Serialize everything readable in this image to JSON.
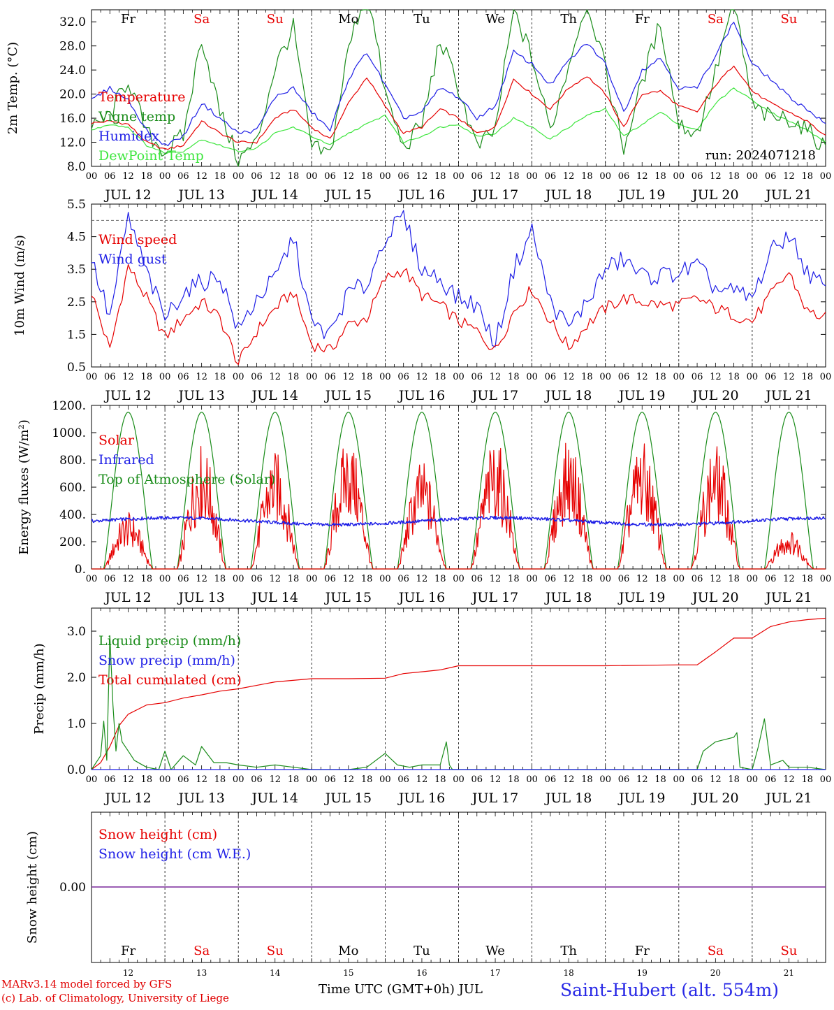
{
  "colors": {
    "red": "#e60000",
    "green": "#1a8c1a",
    "lightgreen": "#3ee63e",
    "blue": "#1e1ee6",
    "purple": "#7a2a9c",
    "weekday": "#000000",
    "weekend": "#e60000"
  },
  "chart_data": [
    {
      "type": "line",
      "ylabel": "2m Temp. (°C)",
      "ylim": [
        8.0,
        34.0
      ],
      "yticks": [
        "8.0",
        "12.0",
        "16.0",
        "20.0",
        "24.0",
        "28.0",
        "32.0"
      ],
      "x_unit": "hours since 00 UTC JUL 12",
      "xlim": [
        0,
        240
      ],
      "annotation": "run: 2024071218",
      "legend": [
        "Temperature",
        "Vigne temp",
        "Humidex",
        "DewPoint Temp"
      ],
      "series": [
        {
          "name": "Temperature",
          "color": "#e60000",
          "x": [
            0,
            6,
            12,
            18,
            24,
            30,
            36,
            42,
            48,
            54,
            60,
            66,
            72,
            78,
            84,
            90,
            96,
            102,
            108,
            114,
            120,
            126,
            132,
            138,
            144,
            150,
            156,
            162,
            168,
            174,
            180,
            186,
            192,
            198,
            204,
            210,
            216,
            222,
            228,
            234,
            240
          ],
          "y": [
            15.2,
            15.5,
            15.0,
            12.0,
            10.8,
            11.5,
            15.5,
            13.5,
            12.0,
            12.0,
            16.0,
            17.5,
            14.5,
            12.5,
            18.5,
            22.8,
            18.0,
            13.5,
            14.5,
            17.5,
            16.0,
            13.5,
            14.5,
            22.5,
            20.0,
            17.5,
            21.0,
            23.0,
            20.0,
            14.5,
            20.0,
            20.5,
            18.0,
            17.0,
            21.5,
            24.8,
            20.5,
            18.5,
            17.0,
            15.5,
            13.0
          ]
        },
        {
          "name": "Vigne temp",
          "color": "#1a8c1a",
          "x": [
            0,
            6,
            12,
            18,
            24,
            30,
            36,
            42,
            48,
            54,
            60,
            66,
            72,
            78,
            84,
            90,
            96,
            102,
            108,
            114,
            120,
            126,
            132,
            138,
            144,
            150,
            156,
            162,
            168,
            174,
            180,
            186,
            192,
            198,
            204,
            210,
            216,
            222,
            228,
            234,
            240
          ],
          "y": [
            14.0,
            16.5,
            22.5,
            13.5,
            10.5,
            13.0,
            29.5,
            17.0,
            9.0,
            12.0,
            24.5,
            31.0,
            11.0,
            10.0,
            27.5,
            38.0,
            20.0,
            11.0,
            15.0,
            29.0,
            21.0,
            11.0,
            14.0,
            34.0,
            26.0,
            14.0,
            25.0,
            36.0,
            24.0,
            11.0,
            22.0,
            32.0,
            15.0,
            13.5,
            23.5,
            36.0,
            18.0,
            16.0,
            16.0,
            14.0,
            11.0
          ]
        },
        {
          "name": "Humidex",
          "color": "#1e1ee6",
          "x": [
            0,
            6,
            12,
            18,
            24,
            30,
            36,
            42,
            48,
            54,
            60,
            66,
            72,
            78,
            84,
            90,
            96,
            102,
            108,
            114,
            120,
            126,
            132,
            138,
            144,
            150,
            156,
            162,
            168,
            174,
            180,
            186,
            192,
            198,
            204,
            210,
            216,
            222,
            228,
            234,
            240
          ],
          "y": [
            19.0,
            21.0,
            19.0,
            14.0,
            11.5,
            13.0,
            18.5,
            16.0,
            13.5,
            14.0,
            19.5,
            21.0,
            17.0,
            14.0,
            22.5,
            27.0,
            21.5,
            16.0,
            17.0,
            21.0,
            19.5,
            16.0,
            18.0,
            27.0,
            25.0,
            21.5,
            25.5,
            28.5,
            25.0,
            17.0,
            24.0,
            26.0,
            21.0,
            21.0,
            26.5,
            32.0,
            25.0,
            22.5,
            19.5,
            17.5,
            15.0
          ]
        },
        {
          "name": "DewPoint Temp",
          "color": "#3ee63e",
          "x": [
            0,
            6,
            12,
            18,
            24,
            30,
            36,
            42,
            48,
            54,
            60,
            66,
            72,
            78,
            84,
            90,
            96,
            102,
            108,
            114,
            120,
            126,
            132,
            138,
            144,
            150,
            156,
            162,
            168,
            174,
            180,
            186,
            192,
            198,
            204,
            210,
            216,
            222,
            228,
            234,
            240
          ],
          "y": [
            14.0,
            15.0,
            14.5,
            11.5,
            10.2,
            10.5,
            12.5,
            11.5,
            10.5,
            11.0,
            13.5,
            14.5,
            13.0,
            11.5,
            13.5,
            15.0,
            16.5,
            12.0,
            13.0,
            14.5,
            15.0,
            13.0,
            13.5,
            16.0,
            14.5,
            12.5,
            14.5,
            16.5,
            17.5,
            13.0,
            15.0,
            17.0,
            15.0,
            14.0,
            18.5,
            21.0,
            19.0,
            17.0,
            15.5,
            14.0,
            12.0
          ]
        }
      ]
    },
    {
      "type": "line",
      "ylabel": "10m Wind (m/s)",
      "ylim": [
        0.5,
        5.5
      ],
      "yticks": [
        "0.5",
        "1.5",
        "2.5",
        "3.5",
        "4.5",
        "5.5"
      ],
      "reference_line": 5.0,
      "xlim": [
        0,
        240
      ],
      "legend": [
        "Wind speed",
        "Wind gust"
      ],
      "series": [
        {
          "name": "Wind speed",
          "color": "#e60000",
          "x": [
            0,
            6,
            12,
            18,
            24,
            30,
            36,
            42,
            48,
            54,
            60,
            66,
            72,
            78,
            84,
            90,
            96,
            102,
            108,
            114,
            120,
            126,
            132,
            138,
            144,
            150,
            156,
            162,
            168,
            174,
            180,
            186,
            192,
            198,
            204,
            210,
            216,
            222,
            228,
            234,
            240
          ],
          "y": [
            2.8,
            1.0,
            3.6,
            2.6,
            1.4,
            2.0,
            2.5,
            2.0,
            0.6,
            1.6,
            2.3,
            2.8,
            1.2,
            1.0,
            1.8,
            2.0,
            3.2,
            3.5,
            2.7,
            2.4,
            1.9,
            1.6,
            1.0,
            2.2,
            2.9,
            1.9,
            1.1,
            1.8,
            2.3,
            2.6,
            2.5,
            2.4,
            2.4,
            2.6,
            2.3,
            2.1,
            1.9,
            2.7,
            3.4,
            2.2,
            2.0
          ]
        },
        {
          "name": "Wind gust",
          "color": "#1e1ee6",
          "x": [
            0,
            6,
            12,
            18,
            24,
            30,
            36,
            42,
            48,
            54,
            60,
            66,
            72,
            78,
            84,
            90,
            96,
            102,
            108,
            114,
            120,
            126,
            132,
            138,
            144,
            150,
            156,
            162,
            168,
            174,
            180,
            186,
            192,
            198,
            204,
            210,
            216,
            222,
            228,
            234,
            240
          ],
          "y": [
            3.8,
            2.0,
            5.1,
            3.4,
            2.0,
            2.8,
            3.1,
            3.3,
            1.6,
            2.6,
            3.2,
            4.5,
            1.8,
            1.5,
            2.8,
            3.0,
            4.5,
            5.1,
            3.5,
            3.2,
            2.6,
            2.4,
            1.2,
            3.5,
            4.7,
            2.5,
            1.7,
            2.5,
            3.5,
            3.8,
            3.3,
            3.3,
            3.4,
            3.6,
            2.9,
            2.8,
            2.6,
            4.0,
            4.6,
            3.4,
            2.9
          ]
        }
      ]
    },
    {
      "type": "line",
      "ylabel": "Energy fluxes (W/m²)",
      "ylim": [
        0,
        1200
      ],
      "yticks": [
        "0.",
        "200.",
        "400.",
        "600.",
        "800.",
        "1000.",
        "1200."
      ],
      "xlim": [
        0,
        240
      ],
      "legend": [
        "Solar",
        "Infrared",
        "Top of Atmosphere (Solar)"
      ],
      "toa_peak": 1150,
      "solar_peaks": [
        380,
        840,
        790,
        880,
        720,
        870,
        860,
        850,
        830,
        260
      ],
      "infrared_mean": 350,
      "series_names": [
        "Solar",
        "Infrared",
        "Top of Atmosphere (Solar)"
      ]
    },
    {
      "type": "line",
      "ylabel": "Precip (mm/h)",
      "ylim": [
        0,
        3.5
      ],
      "yticks": [
        "0.0",
        "1.0",
        "2.0",
        "3.0"
      ],
      "xlim": [
        0,
        240
      ],
      "legend": [
        "Liquid precip (mm/h)",
        "Snow precip (mm/h)",
        "Total cumulated (cm)"
      ],
      "series": [
        {
          "name": "Total cumulated (cm)",
          "color": "#e60000",
          "x": [
            0,
            3,
            6,
            9,
            12,
            18,
            24,
            30,
            36,
            42,
            48,
            60,
            72,
            84,
            96,
            102,
            108,
            114,
            120,
            144,
            168,
            192,
            198,
            204,
            210,
            216,
            222,
            228,
            234,
            240
          ],
          "y": [
            0,
            0.15,
            0.5,
            0.95,
            1.2,
            1.4,
            1.45,
            1.55,
            1.62,
            1.7,
            1.75,
            1.9,
            1.97,
            1.97,
            1.98,
            2.08,
            2.12,
            2.16,
            2.25,
            2.25,
            2.25,
            2.27,
            2.27,
            2.55,
            2.85,
            2.85,
            3.1,
            3.2,
            3.25,
            3.28
          ]
        },
        {
          "name": "Liquid precip (mm/h)",
          "color": "#1a8c1a",
          "x": [
            0,
            3,
            4,
            5,
            6,
            7,
            8,
            9,
            10,
            12,
            14,
            18,
            22,
            24,
            26,
            30,
            34,
            36,
            40,
            44,
            48,
            54,
            60,
            66,
            72,
            84,
            90,
            96,
            100,
            104,
            108,
            114,
            116,
            117,
            118,
            120,
            132,
            144,
            168,
            180,
            192,
            198,
            200,
            204,
            210,
            211,
            212,
            216,
            218,
            220,
            222,
            226,
            228,
            234,
            240
          ],
          "y": [
            0,
            0.3,
            1.05,
            0.2,
            2.9,
            1.4,
            0.4,
            1.0,
            0.6,
            0.4,
            0.2,
            0.05,
            0,
            0.4,
            0,
            0.3,
            0.1,
            0.5,
            0.15,
            0.15,
            0.1,
            0.05,
            0.1,
            0.05,
            0,
            0,
            0.05,
            0.35,
            0.1,
            0.05,
            0.1,
            0.1,
            0.6,
            0.1,
            0,
            0,
            0,
            0,
            0,
            0,
            0,
            0,
            0.4,
            0.6,
            0.7,
            0.8,
            0.05,
            0,
            0.5,
            1.1,
            0.1,
            0.2,
            0.05,
            0.05,
            0
          ]
        },
        {
          "name": "Snow precip (mm/h)",
          "color": "#1e1ee6",
          "x": [
            0,
            240
          ],
          "y": [
            0,
            0
          ]
        }
      ]
    },
    {
      "type": "line",
      "ylabel": "Snow height (cm)",
      "yticks": [
        "0.00"
      ],
      "xlim": [
        0,
        240
      ],
      "legend": [
        "Snow height (cm)",
        "Snow height (cm W.E.)"
      ],
      "series": [
        {
          "name": "Snow height (cm)",
          "color": "#e60000",
          "x": [
            0,
            240
          ],
          "y": [
            0,
            0
          ]
        },
        {
          "name": "Snow height (cm W.E.)",
          "color": "#1e1ee6",
          "x": [
            0,
            240
          ],
          "y": [
            0,
            0
          ]
        }
      ]
    }
  ],
  "x_axis": {
    "hour_ticks": [
      "00",
      "06",
      "12",
      "18"
    ],
    "final_tick": "00",
    "dates": [
      "JUL 12",
      "JUL 13",
      "JUL 14",
      "JUL 15",
      "JUL 16",
      "JUL 17",
      "JUL 18",
      "JUL 19",
      "JUL 20",
      "JUL 21"
    ],
    "day_numbers": [
      "12",
      "13",
      "14",
      "15",
      "16",
      "17",
      "18",
      "19",
      "20",
      "21"
    ],
    "weekdays": [
      "Fr",
      "Sa",
      "Su",
      "Mo",
      "Tu",
      "We",
      "Th",
      "Fr",
      "Sa",
      "Su"
    ],
    "weekend": [
      false,
      true,
      true,
      false,
      false,
      false,
      false,
      false,
      true,
      true
    ]
  },
  "footer": {
    "left": "MARv3.14 model forced by GFS\n(c) Lab. of Climatology, University of Liege",
    "center": "Time UTC (GMT+0h) JUL",
    "right": "Saint-Hubert (alt. 554m)"
  }
}
